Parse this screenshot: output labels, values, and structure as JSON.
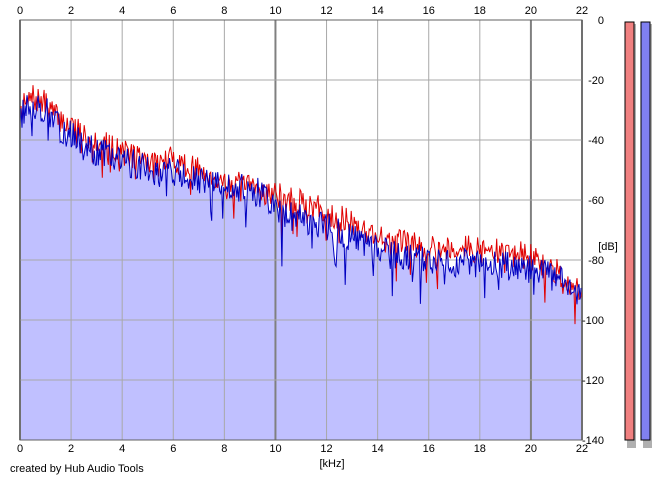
{
  "chart_data": {
    "type": "line",
    "title": "",
    "xlabel": "[kHz]",
    "ylabel": "[dB]",
    "xlim": [
      0,
      22
    ],
    "ylim": [
      -140,
      0
    ],
    "x_ticks": [
      0,
      2,
      4,
      6,
      8,
      10,
      12,
      14,
      16,
      18,
      20,
      22
    ],
    "y_ticks": [
      0,
      -20,
      -40,
      -60,
      -80,
      -100,
      -120,
      -140
    ],
    "x_tick_labels": [
      "0",
      "2",
      "4",
      "6",
      "8",
      "10",
      "12",
      "14",
      "16",
      "18",
      "20",
      "22"
    ],
    "y_tick_labels": [
      "0",
      "-20",
      "-40",
      "-60",
      "-80",
      "-100",
      "-120",
      "-140"
    ],
    "grid": true,
    "legend": "none",
    "fill_color": "#c0c0ff",
    "series": [
      {
        "color": "#e00000",
        "x": [
          0,
          0.5,
          1,
          1.5,
          2,
          2.5,
          3,
          3.5,
          4,
          4.5,
          5,
          5.5,
          6,
          6.5,
          7,
          7.5,
          8,
          8.5,
          9,
          9.5,
          10,
          10.5,
          11,
          11.5,
          12,
          12.5,
          13,
          13.5,
          14,
          14.5,
          15,
          15.5,
          16,
          16.5,
          17,
          17.5,
          18,
          18.5,
          19,
          19.5,
          20,
          20.5,
          21,
          21.5,
          22
        ],
        "values": [
          -30,
          -26,
          -28,
          -33,
          -35,
          -38,
          -40,
          -42,
          -44,
          -45,
          -47,
          -48,
          -46,
          -49,
          -50,
          -52,
          -54,
          -55,
          -56,
          -57,
          -58,
          -60,
          -61,
          -62,
          -64,
          -66,
          -68,
          -70,
          -72,
          -74,
          -74,
          -75,
          -75,
          -76,
          -76,
          -76,
          -77,
          -77,
          -78,
          -78,
          -79,
          -82,
          -84,
          -87,
          -92
        ]
      },
      {
        "color": "#0000c0",
        "x": [
          0,
          0.5,
          1,
          1.5,
          2,
          2.5,
          3,
          3.5,
          4,
          4.5,
          5,
          5.5,
          6,
          6.5,
          7,
          7.5,
          8,
          8.5,
          9,
          9.5,
          10,
          10.5,
          11,
          11.5,
          12,
          12.5,
          13,
          13.5,
          14,
          14.5,
          15,
          15.5,
          16,
          16.5,
          17,
          17.5,
          18,
          18.5,
          19,
          19.5,
          20,
          20.5,
          21,
          21.5,
          22
        ],
        "values": [
          -32,
          -28,
          -30,
          -36,
          -38,
          -42,
          -44,
          -45,
          -47,
          -48,
          -49,
          -51,
          -50,
          -53,
          -54,
          -55,
          -55,
          -56,
          -57,
          -58,
          -63,
          -65,
          -66,
          -67,
          -69,
          -71,
          -73,
          -75,
          -77,
          -78,
          -79,
          -79,
          -80,
          -81,
          -81,
          -81,
          -82,
          -82,
          -82,
          -83,
          -83,
          -84,
          -86,
          -89,
          -93
        ]
      }
    ]
  },
  "credit": "created by Hub Audio Tools",
  "meters": [
    {
      "channel": "left",
      "color": "#f08080",
      "level": 0
    },
    {
      "channel": "right",
      "color": "#8080f0",
      "level": 0
    }
  ]
}
